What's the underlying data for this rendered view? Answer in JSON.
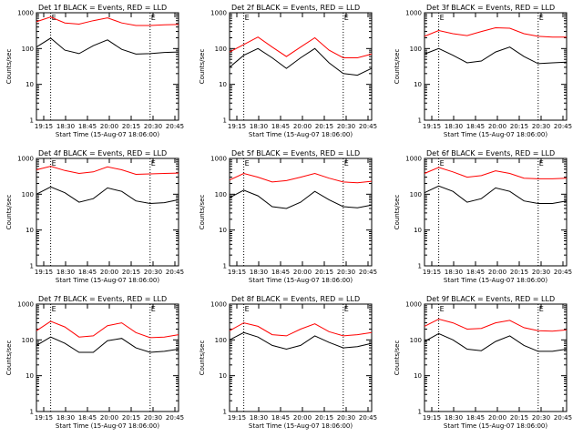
{
  "figure": {
    "xlabel": "Start Time (15-Aug-07 18:06:00)",
    "ylabel": "Counts/sec",
    "xticks": [
      "19:15",
      "18:30",
      "18:45",
      "20:00",
      "20:15",
      "20:30",
      "20:45"
    ],
    "yticks": [
      "1",
      "10",
      "100",
      "1000"
    ],
    "event_marker": "E",
    "colors": {
      "events": "#000000",
      "lld": "#ff0000"
    }
  },
  "chart_data": [
    {
      "type": "line",
      "title": "Det 1f BLACK = Events, RED = LLD",
      "x": [
        0,
        20,
        40,
        60,
        80,
        100,
        120,
        140,
        160,
        180,
        200
      ],
      "xlim": [
        0,
        200
      ],
      "ylim": [
        1,
        1000
      ],
      "yscale": "log",
      "markers": [
        20,
        160
      ],
      "series": [
        {
          "name": "Events",
          "values": [
            110,
            195,
            90,
            72,
            120,
            175,
            95,
            70,
            72,
            78,
            80
          ]
        },
        {
          "name": "LLD",
          "values": [
            560,
            760,
            520,
            480,
            600,
            720,
            520,
            440,
            440,
            460,
            470
          ]
        }
      ]
    },
    {
      "type": "line",
      "title": "Det 2f BLACK = Events, RED = LLD",
      "x": [
        0,
        20,
        40,
        60,
        80,
        100,
        120,
        140,
        160,
        180,
        200
      ],
      "xlim": [
        0,
        200
      ],
      "ylim": [
        1,
        1000
      ],
      "yscale": "log",
      "markers": [
        20,
        160
      ],
      "series": [
        {
          "name": "Events",
          "values": [
            30,
            65,
            100,
            55,
            28,
            55,
            100,
            40,
            20,
            18,
            28
          ]
        },
        {
          "name": "LLD",
          "values": [
            80,
            130,
            210,
            110,
            60,
            110,
            200,
            90,
            55,
            55,
            70
          ]
        }
      ]
    },
    {
      "type": "line",
      "title": "Det 3f BLACK = Events, RED = LLD",
      "x": [
        0,
        20,
        40,
        60,
        80,
        100,
        120,
        140,
        160,
        180,
        200
      ],
      "xlim": [
        0,
        200
      ],
      "ylim": [
        1,
        1000
      ],
      "yscale": "log",
      "markers": [
        20,
        160
      ],
      "series": [
        {
          "name": "Events",
          "values": [
            70,
            100,
            65,
            40,
            45,
            80,
            110,
            60,
            38,
            40,
            42
          ]
        },
        {
          "name": "LLD",
          "values": [
            220,
            320,
            260,
            230,
            300,
            380,
            370,
            260,
            220,
            210,
            210
          ]
        }
      ]
    },
    {
      "type": "line",
      "title": "Det 4f BLACK = Events, RED = LLD",
      "x": [
        0,
        20,
        40,
        60,
        80,
        100,
        120,
        140,
        160,
        180,
        200
      ],
      "xlim": [
        0,
        200
      ],
      "ylim": [
        1,
        1000
      ],
      "yscale": "log",
      "markers": [
        20,
        160
      ],
      "series": [
        {
          "name": "Events",
          "values": [
            100,
            160,
            110,
            60,
            75,
            150,
            120,
            65,
            55,
            58,
            70
          ]
        },
        {
          "name": "LLD",
          "values": [
            480,
            600,
            460,
            380,
            420,
            580,
            480,
            360,
            370,
            380,
            390
          ]
        }
      ]
    },
    {
      "type": "line",
      "title": "Det 5f BLACK = Events, RED = LLD",
      "x": [
        0,
        20,
        40,
        60,
        80,
        100,
        120,
        140,
        160,
        180,
        200
      ],
      "xlim": [
        0,
        200
      ],
      "ylim": [
        1,
        1000
      ],
      "yscale": "log",
      "markers": [
        20,
        160
      ],
      "series": [
        {
          "name": "Events",
          "values": [
            80,
            130,
            90,
            45,
            40,
            60,
            120,
            70,
            45,
            42,
            50
          ]
        },
        {
          "name": "LLD",
          "values": [
            250,
            380,
            300,
            220,
            240,
            300,
            380,
            280,
            220,
            210,
            230
          ]
        }
      ]
    },
    {
      "type": "line",
      "title": "Det 6f BLACK = Events, RED = LLD",
      "x": [
        0,
        20,
        40,
        60,
        80,
        100,
        120,
        140,
        160,
        180,
        200
      ],
      "xlim": [
        0,
        200
      ],
      "ylim": [
        1,
        1000
      ],
      "yscale": "log",
      "markers": [
        20,
        160
      ],
      "series": [
        {
          "name": "Events",
          "values": [
            110,
            170,
            120,
            60,
            75,
            150,
            120,
            65,
            55,
            55,
            65
          ]
        },
        {
          "name": "LLD",
          "values": [
            380,
            560,
            420,
            300,
            330,
            450,
            380,
            280,
            270,
            270,
            280
          ]
        }
      ]
    },
    {
      "type": "line",
      "title": "Det 7f BLACK = Events, RED = LLD",
      "x": [
        0,
        20,
        40,
        60,
        80,
        100,
        120,
        140,
        160,
        180,
        200
      ],
      "xlim": [
        0,
        200
      ],
      "ylim": [
        1,
        1000
      ],
      "yscale": "log",
      "markers": [
        20,
        160
      ],
      "series": [
        {
          "name": "Events",
          "values": [
            70,
            120,
            80,
            45,
            45,
            95,
            110,
            60,
            45,
            48,
            55
          ]
        },
        {
          "name": "LLD",
          "values": [
            180,
            330,
            230,
            120,
            130,
            250,
            300,
            160,
            115,
            120,
            140
          ]
        }
      ]
    },
    {
      "type": "line",
      "title": "Det 8f BLACK = Events, RED = LLD",
      "x": [
        0,
        20,
        40,
        60,
        80,
        100,
        120,
        140,
        160,
        180,
        200
      ],
      "xlim": [
        0,
        200
      ],
      "ylim": [
        1,
        1000
      ],
      "yscale": "log",
      "markers": [
        20,
        160
      ],
      "series": [
        {
          "name": "Events",
          "values": [
            100,
            160,
            120,
            70,
            55,
            70,
            130,
            85,
            60,
            65,
            80
          ]
        },
        {
          "name": "LLD",
          "values": [
            180,
            300,
            240,
            140,
            130,
            200,
            280,
            170,
            130,
            140,
            160
          ]
        }
      ]
    },
    {
      "type": "line",
      "title": "Det 9f BLACK = Events, RED = LLD",
      "x": [
        0,
        20,
        40,
        60,
        80,
        100,
        120,
        140,
        160,
        180,
        200
      ],
      "xlim": [
        0,
        200
      ],
      "ylim": [
        1,
        1000
      ],
      "yscale": "log",
      "markers": [
        20,
        160
      ],
      "series": [
        {
          "name": "Events",
          "values": [
            90,
            150,
            100,
            55,
            50,
            90,
            130,
            70,
            48,
            48,
            55
          ]
        },
        {
          "name": "LLD",
          "values": [
            240,
            380,
            300,
            200,
            210,
            300,
            350,
            220,
            180,
            175,
            190
          ]
        }
      ]
    }
  ]
}
